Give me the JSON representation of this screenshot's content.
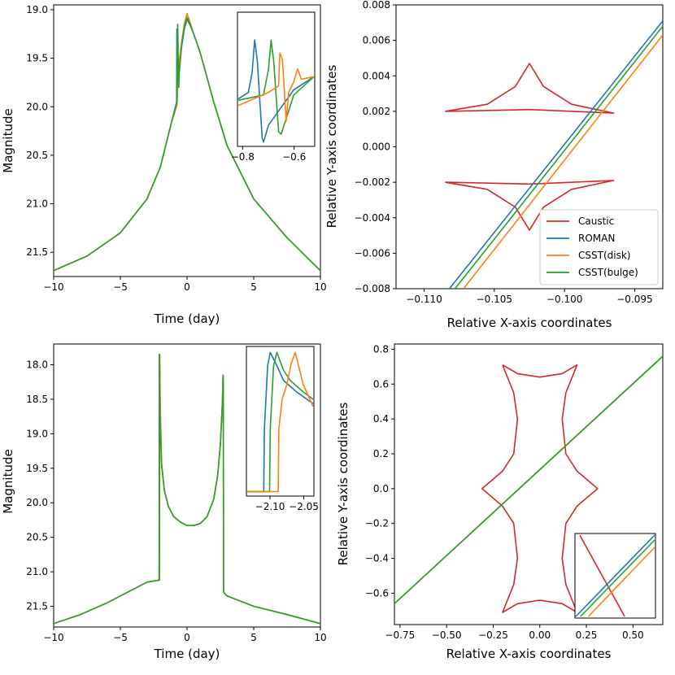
{
  "colors": {
    "caustic": "#d62728",
    "roman": "#1f77b4",
    "csst_disk": "#ff7f0e",
    "csst_bulge": "#2ca02c"
  },
  "chart_data": [
    {
      "id": "panel-a",
      "type": "line",
      "xlabel": "Time (day)",
      "ylabel": "Magnitude",
      "xlim": [
        -10,
        10
      ],
      "ylim": [
        21.75,
        18.95
      ],
      "y_inverted": true,
      "xticks": [
        -10,
        -5,
        0,
        5,
        10
      ],
      "xtick_labels": [
        "−10",
        "−5",
        "0",
        "5",
        "10"
      ],
      "yticks": [
        19.0,
        19.5,
        20.0,
        20.5,
        21.0,
        21.5
      ],
      "ytick_labels": [
        "19.0",
        "19.5",
        "20.0",
        "20.5",
        "21.0",
        "21.5"
      ],
      "series": [
        {
          "name": "ROMAN",
          "color_key": "roman",
          "x": [
            -10,
            -7.5,
            -5,
            -3,
            -2,
            -1.2,
            -0.78,
            -0.76,
            -0.74,
            -0.72,
            -0.68,
            -0.6,
            -0.4,
            -0.2,
            0,
            0.2,
            0.5,
            1,
            2,
            3,
            5,
            7.5,
            10
          ],
          "y": [
            21.69,
            21.54,
            21.3,
            20.95,
            20.62,
            20.18,
            19.95,
            19.2,
            19.55,
            19.82,
            19.75,
            19.6,
            19.38,
            19.2,
            19.1,
            19.15,
            19.25,
            19.45,
            19.95,
            20.4,
            20.95,
            21.35,
            21.69
          ]
        },
        {
          "name": "CSST(disk)",
          "color_key": "csst_disk",
          "x": [
            -10,
            -7.5,
            -5,
            -3,
            -2,
            -1.2,
            -0.75,
            -0.7,
            -0.64,
            -0.58,
            -0.4,
            -0.2,
            0,
            0.2,
            0.5,
            1,
            2,
            3,
            5,
            7.5,
            10
          ],
          "y": [
            21.69,
            21.54,
            21.3,
            20.95,
            20.62,
            20.18,
            19.98,
            19.72,
            19.6,
            19.52,
            19.33,
            19.14,
            19.04,
            19.12,
            19.25,
            19.45,
            19.95,
            20.4,
            20.95,
            21.35,
            21.69
          ]
        },
        {
          "name": "CSST(bulge)",
          "color_key": "csst_bulge",
          "x": [
            -10,
            -7.5,
            -5,
            -3,
            -2,
            -1.2,
            -0.75,
            -0.7,
            -0.66,
            -0.62,
            -0.58,
            -0.4,
            -0.2,
            0,
            0.2,
            0.5,
            1,
            2,
            3,
            5,
            7.5,
            10
          ],
          "y": [
            21.69,
            21.54,
            21.3,
            20.95,
            20.62,
            20.18,
            19.95,
            19.15,
            19.5,
            19.8,
            19.65,
            19.36,
            19.18,
            19.08,
            19.14,
            19.25,
            19.45,
            19.95,
            20.4,
            20.95,
            21.35,
            21.69
          ]
        }
      ],
      "inset": {
        "xlim": [
          -0.82,
          -0.52
        ],
        "ylim": [
          1,
          0
        ],
        "xticks": [
          -0.8,
          -0.6
        ],
        "xtick_labels": [
          "−0.8",
          "−0.6"
        ],
        "series": [
          {
            "color_key": "roman",
            "x": [
              -0.82,
              -0.78,
              -0.765,
              -0.755,
              -0.745,
              -0.725,
              -0.72,
              -0.7,
              -0.6,
              -0.52
            ],
            "y": [
              0.65,
              0.6,
              0.45,
              0.2,
              0.35,
              0.95,
              0.98,
              0.85,
              0.58,
              0.48
            ]
          },
          {
            "color_key": "csst_bulge",
            "x": [
              -0.82,
              -0.72,
              -0.7,
              -0.69,
              -0.68,
              -0.66,
              -0.65,
              -0.63,
              -0.6,
              -0.52
            ],
            "y": [
              0.66,
              0.62,
              0.42,
              0.2,
              0.35,
              0.9,
              0.92,
              0.8,
              0.62,
              0.48
            ]
          },
          {
            "color_key": "csst_disk",
            "x": [
              -0.82,
              -0.7,
              -0.66,
              -0.655,
              -0.645,
              -0.63,
              -0.62,
              -0.6,
              -0.585,
              -0.57,
              -0.52
            ],
            "y": [
              0.7,
              0.6,
              0.55,
              0.3,
              0.35,
              0.82,
              0.6,
              0.52,
              0.42,
              0.5,
              0.48
            ]
          }
        ]
      }
    },
    {
      "id": "panel-b",
      "type": "line",
      "xlabel": "Relative X-axis coordinates",
      "ylabel": "Relative Y-axis coordinates",
      "xlim": [
        -0.112,
        -0.093
      ],
      "ylim": [
        -0.008,
        0.008
      ],
      "xticks": [
        -0.11,
        -0.105,
        -0.1,
        -0.095
      ],
      "xtick_labels": [
        "−0.110",
        "−0.105",
        "−0.100",
        "−0.095"
      ],
      "yticks": [
        -0.008,
        -0.006,
        -0.004,
        -0.002,
        0.0,
        0.002,
        0.004,
        0.006,
        0.008
      ],
      "ytick_labels": [
        "−0.008",
        "−0.006",
        "−0.004",
        "−0.002",
        "0.000",
        "0.002",
        "0.004",
        "0.006",
        "0.008"
      ],
      "caustics": [
        {
          "x": [
            -0.1085,
            -0.1055,
            -0.1035,
            -0.1025,
            -0.1015,
            -0.0995,
            -0.0965,
            -0.1025,
            -0.1085
          ],
          "y": [
            0.002,
            0.0024,
            0.0034,
            0.0047,
            0.0034,
            0.0024,
            0.0019,
            0.0021,
            0.002
          ]
        },
        {
          "x": [
            -0.1085,
            -0.1055,
            -0.1035,
            -0.1025,
            -0.1015,
            -0.0995,
            -0.0965,
            -0.1025,
            -0.1085
          ],
          "y": [
            -0.002,
            -0.0024,
            -0.0034,
            -0.0047,
            -0.0034,
            -0.0024,
            -0.0019,
            -0.0021,
            -0.002
          ]
        }
      ],
      "series": [
        {
          "name": "ROMAN",
          "color_key": "roman",
          "x": [
            -0.1082,
            -0.093
          ],
          "y": [
            -0.008,
            0.0071
          ]
        },
        {
          "name": "CSST(disk)",
          "color_key": "csst_disk",
          "x": [
            -0.1072,
            -0.093
          ],
          "y": [
            -0.008,
            0.0063
          ]
        },
        {
          "name": "CSST(bulge)",
          "color_key": "csst_bulge",
          "x": [
            -0.1078,
            -0.093
          ],
          "y": [
            -0.008,
            0.0068
          ]
        }
      ],
      "legend": {
        "position": "lower right",
        "entries": [
          {
            "label": "Caustic",
            "color_key": "caustic"
          },
          {
            "label": "ROMAN",
            "color_key": "roman"
          },
          {
            "label": "CSST(disk)",
            "color_key": "csst_disk"
          },
          {
            "label": "CSST(bulge)",
            "color_key": "csst_bulge"
          }
        ]
      }
    },
    {
      "id": "panel-c",
      "type": "line",
      "xlabel": "Time (day)",
      "ylabel": "Magnitude",
      "xlim": [
        -10,
        10
      ],
      "ylim": [
        21.8,
        17.7
      ],
      "y_inverted": true,
      "xticks": [
        -10,
        -5,
        0,
        5,
        10
      ],
      "xtick_labels": [
        "−10",
        "−5",
        "0",
        "5",
        "10"
      ],
      "yticks": [
        18.0,
        18.5,
        19.0,
        19.5,
        20.0,
        20.5,
        21.0,
        21.5
      ],
      "ytick_labels": [
        "18.0",
        "18.5",
        "19.0",
        "19.5",
        "20.0",
        "20.5",
        "21.0",
        "21.5"
      ],
      "series": [
        {
          "name": "ROMAN",
          "color_key": "roman",
          "x": [
            -10,
            -8,
            -6,
            -4,
            -3,
            -2.1,
            -2.08,
            -2.05,
            -2.0,
            -1.9,
            -1.7,
            -1.4,
            -1,
            -0.5,
            0,
            0.5,
            1,
            1.5,
            2,
            2.3,
            2.5,
            2.65,
            2.7,
            2.72,
            2.74,
            2.76,
            3,
            5,
            7.5,
            10
          ],
          "y": [
            21.75,
            21.62,
            21.45,
            21.25,
            21.15,
            21.12,
            17.85,
            18.5,
            18.95,
            19.45,
            19.82,
            20.05,
            20.2,
            20.28,
            20.33,
            20.33,
            20.3,
            20.2,
            19.95,
            19.6,
            19.15,
            18.55,
            18.15,
            18.3,
            21.28,
            21.3,
            21.35,
            21.5,
            21.62,
            21.75
          ]
        },
        {
          "name": "CSST(disk)",
          "color_key": "csst_disk",
          "x": [
            -10,
            -8,
            -6,
            -4,
            -3,
            -2.06,
            -2.04,
            -2.0,
            -1.9,
            -1.7,
            -1.4,
            -1,
            -0.5,
            0,
            0.5,
            1,
            1.5,
            2,
            2.3,
            2.5,
            2.65,
            2.7,
            2.72,
            2.74,
            2.76,
            3,
            5,
            7.5,
            10
          ],
          "y": [
            21.75,
            21.62,
            21.45,
            21.25,
            21.15,
            21.12,
            17.85,
            18.6,
            19.45,
            19.82,
            20.05,
            20.2,
            20.28,
            20.33,
            20.33,
            20.3,
            20.2,
            19.95,
            19.6,
            19.15,
            18.55,
            18.15,
            18.3,
            21.28,
            21.3,
            21.35,
            21.5,
            21.62,
            21.75
          ]
        },
        {
          "name": "CSST(bulge)",
          "color_key": "csst_bulge",
          "x": [
            -10,
            -8,
            -6,
            -4,
            -3,
            -2.08,
            -2.07,
            -2.04,
            -2.0,
            -1.9,
            -1.7,
            -1.4,
            -1,
            -0.5,
            0,
            0.5,
            1,
            1.5,
            2,
            2.3,
            2.5,
            2.65,
            2.7,
            2.72,
            2.74,
            2.76,
            3,
            5,
            7.5,
            10
          ],
          "y": [
            21.75,
            21.62,
            21.45,
            21.25,
            21.15,
            21.12,
            17.85,
            18.55,
            18.95,
            19.45,
            19.82,
            20.05,
            20.2,
            20.28,
            20.33,
            20.33,
            20.3,
            20.2,
            19.95,
            19.6,
            19.15,
            18.55,
            18.15,
            18.3,
            21.28,
            21.3,
            21.35,
            21.5,
            21.62,
            21.75
          ]
        }
      ],
      "inset": {
        "xlim": [
          -2.135,
          -2.035
        ],
        "ylim": [
          1,
          0
        ],
        "xticks": [
          -2.1,
          -2.05
        ],
        "xtick_labels": [
          "−2.10",
          "−2.05"
        ],
        "series": [
          {
            "color_key": "roman",
            "x": [
              -2.135,
              -2.11,
              -2.109,
              -2.104,
              -2.1,
              -2.09,
              -2.08,
              -2.06,
              -2.035
            ],
            "y": [
              0.98,
              0.98,
              0.55,
              0.12,
              0.03,
              0.12,
              0.22,
              0.3,
              0.38
            ]
          },
          {
            "color_key": "csst_bulge",
            "x": [
              -2.135,
              -2.101,
              -2.1,
              -2.095,
              -2.09,
              -2.08,
              -2.07,
              -2.05,
              -2.035
            ],
            "y": [
              0.98,
              0.98,
              0.55,
              0.12,
              0.03,
              0.15,
              0.22,
              0.3,
              0.35
            ]
          },
          {
            "color_key": "csst_disk",
            "x": [
              -2.135,
              -2.088,
              -2.087,
              -2.082,
              -2.075,
              -2.068,
              -2.062,
              -2.05,
              -2.035
            ],
            "y": [
              0.98,
              0.98,
              0.55,
              0.35,
              0.25,
              0.1,
              0.03,
              0.25,
              0.4
            ]
          }
        ]
      }
    },
    {
      "id": "panel-d",
      "type": "line",
      "xlabel": "Relative X-axis coordinates",
      "ylabel": "Relative Y-axis coordinates",
      "xlim": [
        -0.78,
        0.66
      ],
      "ylim": [
        -0.78,
        0.83
      ],
      "xticks": [
        -0.75,
        -0.5,
        -0.25,
        0.0,
        0.25,
        0.5
      ],
      "xtick_labels": [
        "−0.75",
        "−0.50",
        "−0.25",
        "0.00",
        "0.25",
        "0.50"
      ],
      "yticks": [
        -0.6,
        -0.4,
        -0.2,
        0.0,
        0.2,
        0.4,
        0.6,
        0.8
      ],
      "ytick_labels": [
        "−0.6",
        "−0.4",
        "−0.2",
        "0.0",
        "0.2",
        "0.4",
        "0.6",
        "0.8"
      ],
      "caustics": [
        {
          "x": [
            -0.2,
            -0.12,
            0,
            0.12,
            0.2,
            0.14,
            0.12,
            0.14,
            0.2,
            0.31,
            0.2,
            0.14,
            0.12,
            0.14,
            0.2,
            0.12,
            0,
            -0.12,
            -0.2,
            -0.14,
            -0.12,
            -0.14,
            -0.2,
            -0.31,
            -0.2,
            -0.14,
            -0.12,
            -0.14,
            -0.2
          ],
          "y": [
            0.71,
            0.66,
            0.64,
            0.66,
            0.71,
            0.55,
            0.4,
            0.2,
            0.1,
            0.0,
            -0.1,
            -0.2,
            -0.4,
            -0.55,
            -0.71,
            -0.66,
            -0.64,
            -0.66,
            -0.71,
            -0.55,
            -0.4,
            -0.2,
            -0.1,
            0.0,
            0.1,
            0.2,
            0.4,
            0.55,
            0.71
          ]
        }
      ],
      "series": [
        {
          "name": "ROMAN",
          "color_key": "roman",
          "x": [
            -0.78,
            0.66
          ],
          "y": [
            -0.66,
            0.76
          ]
        },
        {
          "name": "CSST(disk)",
          "color_key": "csst_disk",
          "x": [
            -0.78,
            0.66
          ],
          "y": [
            -0.66,
            0.76
          ]
        },
        {
          "name": "CSST(bulge)",
          "color_key": "csst_bulge",
          "x": [
            -0.78,
            0.66
          ],
          "y": [
            -0.66,
            0.76
          ]
        }
      ],
      "inset": {
        "xlim": [
          0,
          1
        ],
        "ylim": [
          0,
          1
        ],
        "caustic": {
          "x": [
            0.05,
            0.62
          ],
          "y": [
            1.0,
            0.0
          ]
        },
        "series": [
          {
            "color_key": "roman",
            "x": [
              0.0,
              1.0
            ],
            "y": [
              0.0,
              1.0
            ]
          },
          {
            "color_key": "csst_bulge",
            "x": [
              0.06,
              1.0
            ],
            "y": [
              0.0,
              0.94
            ]
          },
          {
            "color_key": "csst_disk",
            "x": [
              0.16,
              1.0
            ],
            "y": [
              0.0,
              0.85
            ]
          }
        ]
      }
    }
  ]
}
